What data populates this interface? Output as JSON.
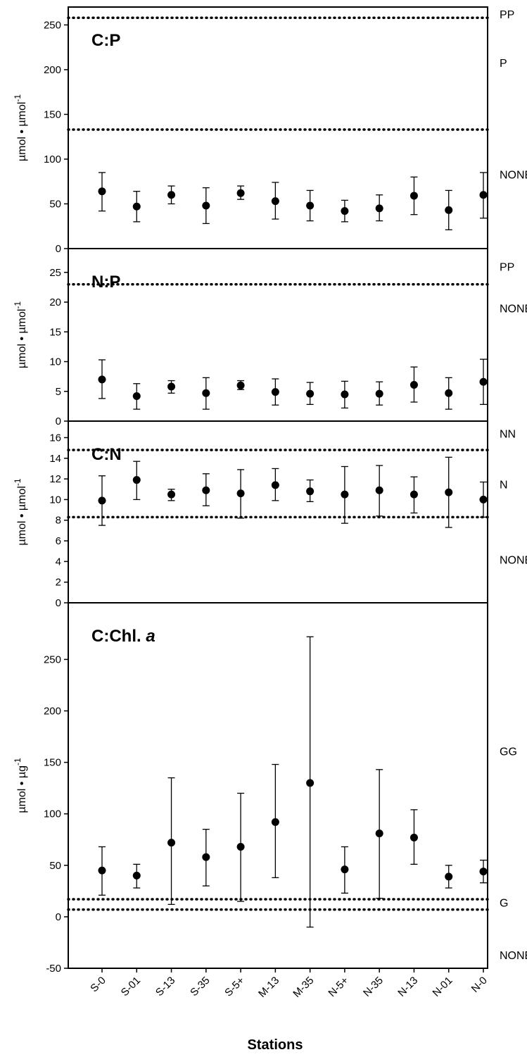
{
  "chart_data": {
    "type": "scatter",
    "xlabel": "Stations",
    "categories": [
      "S-0",
      "S-01",
      "S-13",
      "S-35",
      "S-5+",
      "M-13",
      "M-35",
      "N-5+",
      "N-35",
      "N-13",
      "N-01",
      "N-0"
    ],
    "panels": [
      {
        "title": "C:P",
        "title_italic": "",
        "ylabel": "µmol • µmol",
        "ylabel_sup": "-1",
        "ylim": [
          0,
          270
        ],
        "yticks": [
          0,
          50,
          100,
          150,
          200,
          250
        ],
        "means": [
          64,
          47,
          60,
          48,
          62,
          53,
          48,
          42,
          45,
          59,
          43,
          60
        ],
        "lower": [
          42,
          30,
          50,
          28,
          55,
          33,
          31,
          30,
          31,
          38,
          21,
          34
        ],
        "upper": [
          85,
          64,
          70,
          68,
          70,
          74,
          65,
          54,
          60,
          80,
          65,
          85
        ],
        "thresholds": [
          258,
          133
        ],
        "zones": [
          {
            "label": "PP",
            "y": 262
          },
          {
            "label": "P",
            "y": 208
          },
          {
            "label": "NONE·",
            "y": 83
          }
        ]
      },
      {
        "title": "N:P",
        "title_italic": "",
        "ylabel": "µmol • µmol",
        "ylabel_sup": "-1",
        "ylim": [
          0,
          29
        ],
        "yticks": [
          0,
          5,
          10,
          15,
          20,
          25
        ],
        "means": [
          7.0,
          4.2,
          5.8,
          4.7,
          6.0,
          4.9,
          4.6,
          4.5,
          4.6,
          6.1,
          4.7,
          6.6
        ],
        "lower": [
          3.8,
          2.0,
          4.7,
          2.0,
          5.3,
          2.7,
          2.8,
          2.2,
          2.7,
          3.2,
          2.0,
          2.8
        ],
        "upper": [
          10.3,
          6.3,
          6.8,
          7.3,
          6.8,
          7.1,
          6.5,
          6.7,
          6.6,
          9.1,
          7.3,
          10.4
        ],
        "thresholds": [
          23
        ],
        "zones": [
          {
            "label": "PP",
            "y": 26
          },
          {
            "label": "NONE",
            "y": 19
          }
        ]
      },
      {
        "title": "C:N",
        "title_italic": "",
        "ylabel": "µmol • µmol",
        "ylabel_sup": "-1",
        "ylim": [
          0,
          17.6
        ],
        "yticks": [
          0,
          2,
          4,
          6,
          8,
          10,
          12,
          14,
          16
        ],
        "means": [
          9.9,
          11.9,
          10.5,
          10.9,
          10.6,
          11.4,
          10.8,
          10.5,
          10.9,
          10.5,
          10.7,
          10.0
        ],
        "lower": [
          7.5,
          10.0,
          9.9,
          9.4,
          8.2,
          9.9,
          9.8,
          7.7,
          8.4,
          8.7,
          7.3,
          8.3
        ],
        "upper": [
          12.3,
          13.7,
          11.0,
          12.5,
          12.9,
          13.0,
          11.9,
          13.2,
          13.3,
          12.2,
          14.1,
          11.7
        ],
        "thresholds": [
          14.8,
          8.3
        ],
        "zones": [
          {
            "label": "NN",
            "y": 16.4
          },
          {
            "label": "N",
            "y": 11.5
          },
          {
            "label": "NONE",
            "y": 4.2
          }
        ]
      },
      {
        "title": "C:Chl. ",
        "title_italic": "a",
        "ylabel": "µmol • µg",
        "ylabel_sup": "-1",
        "ylim": [
          -50,
          305
        ],
        "yticks": [
          -50,
          0,
          50,
          100,
          150,
          200,
          250
        ],
        "means": [
          45,
          40,
          72,
          58,
          68,
          92,
          130,
          46,
          81,
          77,
          39,
          44
        ],
        "lower": [
          21,
          28,
          12,
          30,
          15,
          38,
          -10,
          23,
          18,
          51,
          28,
          33
        ],
        "upper": [
          68,
          51,
          135,
          85,
          120,
          148,
          272,
          68,
          143,
          104,
          50,
          55
        ],
        "thresholds": [
          17,
          7
        ],
        "zones": [
          {
            "label": "GG",
            "y": 161
          },
          {
            "label": "G",
            "y": 14
          },
          {
            "label": "NONE",
            "y": -37
          }
        ]
      }
    ]
  }
}
